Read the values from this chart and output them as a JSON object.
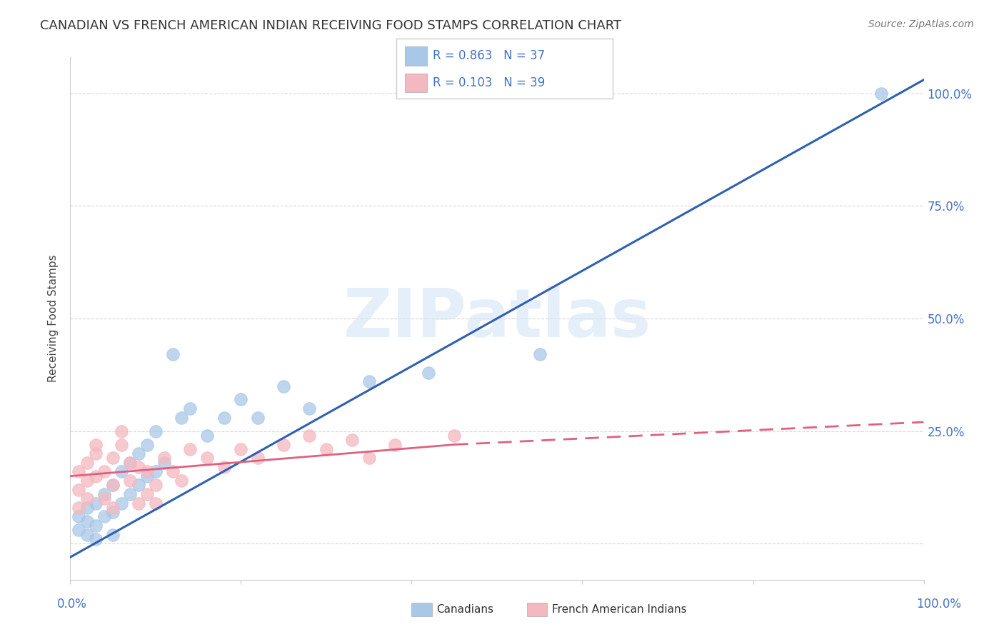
{
  "title": "CANADIAN VS FRENCH AMERICAN INDIAN RECEIVING FOOD STAMPS CORRELATION CHART",
  "source": "Source: ZipAtlas.com",
  "ylabel": "Receiving Food Stamps",
  "xlim": [
    0,
    100
  ],
  "ylim": [
    -8,
    108
  ],
  "canadians_R": 0.863,
  "canadians_N": 37,
  "french_R": 0.103,
  "french_N": 39,
  "canadian_scatter_color": "#a8c8e8",
  "french_scatter_color": "#f4b8c0",
  "canadian_line_color": "#3060b0",
  "french_line_color": "#e06080",
  "background_color": "#ffffff",
  "watermark": "ZIPatlas",
  "canadians_x": [
    1,
    1,
    2,
    2,
    2,
    3,
    3,
    3,
    4,
    4,
    5,
    5,
    5,
    6,
    6,
    7,
    7,
    8,
    8,
    9,
    9,
    10,
    10,
    11,
    12,
    13,
    14,
    16,
    18,
    20,
    22,
    25,
    28,
    35,
    42,
    55,
    95
  ],
  "canadians_y": [
    3,
    6,
    5,
    8,
    2,
    9,
    4,
    1,
    11,
    6,
    13,
    7,
    2,
    16,
    9,
    18,
    11,
    20,
    13,
    22,
    15,
    25,
    16,
    18,
    42,
    28,
    30,
    24,
    28,
    32,
    28,
    35,
    30,
    36,
    38,
    42,
    100
  ],
  "french_x": [
    1,
    1,
    1,
    2,
    2,
    2,
    3,
    3,
    3,
    4,
    4,
    5,
    5,
    5,
    6,
    6,
    7,
    7,
    8,
    8,
    9,
    9,
    10,
    10,
    11,
    12,
    13,
    14,
    16,
    18,
    20,
    22,
    25,
    28,
    30,
    33,
    35,
    38,
    45
  ],
  "french_y": [
    8,
    12,
    16,
    10,
    14,
    18,
    15,
    20,
    22,
    10,
    16,
    8,
    13,
    19,
    22,
    25,
    18,
    14,
    9,
    17,
    11,
    16,
    13,
    9,
    19,
    16,
    14,
    21,
    19,
    17,
    21,
    19,
    22,
    24,
    21,
    23,
    19,
    22,
    24
  ],
  "canadian_line_x0": 0,
  "canadian_line_y0": -3,
  "canadian_line_x1": 100,
  "canadian_line_y1": 103,
  "french_solid_x0": 0,
  "french_solid_y0": 15,
  "french_solid_x1": 45,
  "french_solid_y1": 22,
  "french_dash_x0": 45,
  "french_dash_y0": 22,
  "french_dash_x1": 100,
  "french_dash_y1": 27,
  "ytick_positions": [
    0,
    25,
    50,
    75,
    100
  ],
  "ytick_labels_right": [
    "",
    "25.0%",
    "50.0%",
    "75.0%",
    "100.0%"
  ],
  "grid_color": "#d8d8d8",
  "title_fontsize": 13,
  "source_fontsize": 10,
  "axis_label_fontsize": 11,
  "right_tick_color": "#4472c4",
  "bottom_tick_x_positions": [
    0,
    20,
    40,
    60,
    80,
    100
  ],
  "bottom_tick_labels": [
    "",
    "",
    "",
    "",
    "",
    ""
  ]
}
